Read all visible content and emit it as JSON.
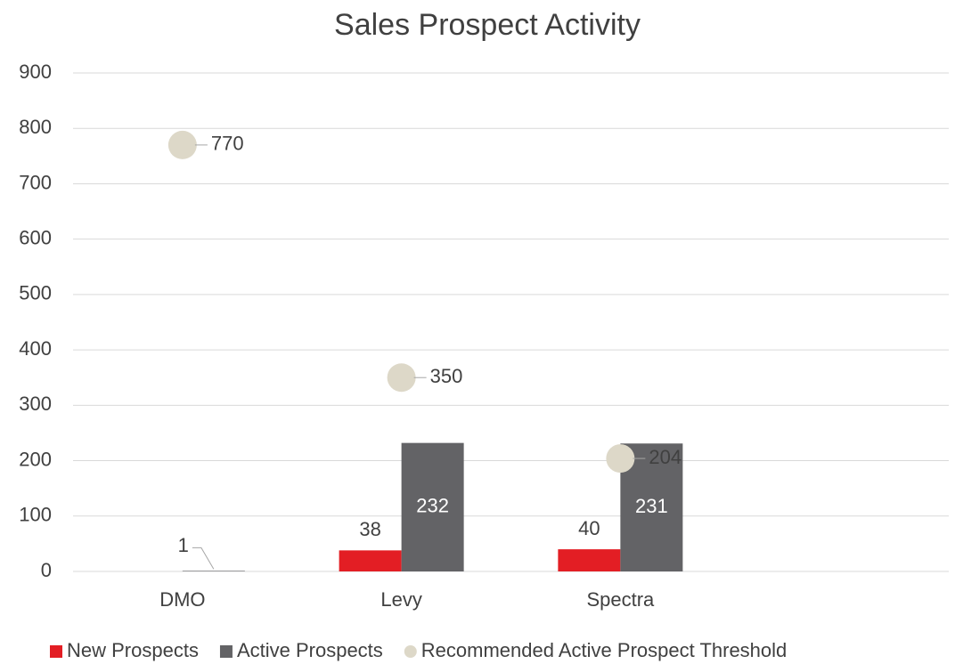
{
  "chart_data": {
    "type": "bar",
    "title": "Sales Prospect Activity",
    "categories": [
      "DMO",
      "Levy",
      "Spectra",
      null
    ],
    "series": [
      {
        "name": "New Prospects",
        "color": "#e31e24",
        "values": [
          null,
          38,
          40,
          null
        ]
      },
      {
        "name": "Active Prospects",
        "color": "#636366",
        "values": [
          1,
          232,
          231,
          null
        ]
      },
      {
        "name": "Recommended Active Prospect Threshold",
        "color": "#ddd8c8",
        "type": "scatter",
        "values": [
          770,
          350,
          204,
          null
        ]
      }
    ],
    "ylim": [
      0,
      900
    ],
    "yticks": [
      0,
      100,
      200,
      300,
      400,
      500,
      600,
      700,
      800,
      900
    ],
    "grid": true,
    "legend": "bottom"
  }
}
